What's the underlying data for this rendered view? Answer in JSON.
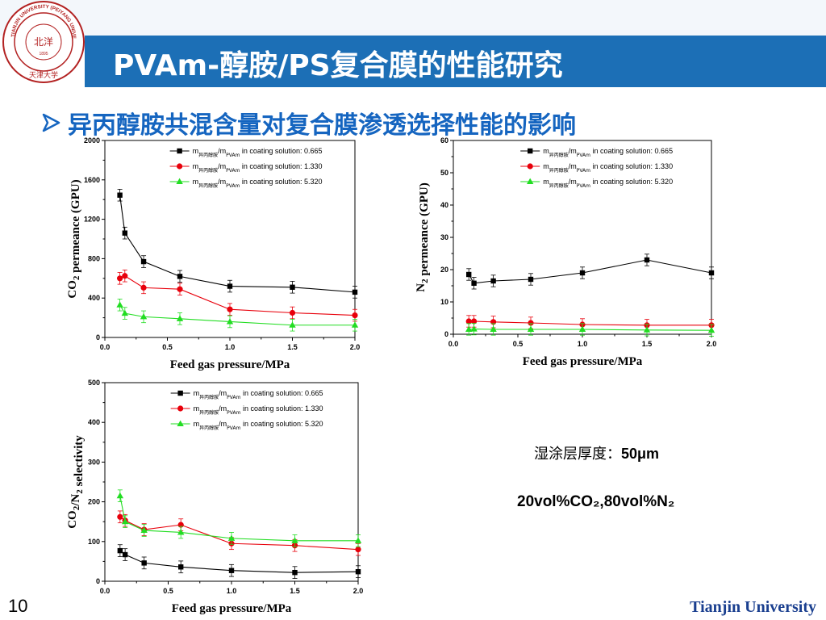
{
  "slide": {
    "title": "PVAm-醇胺/PS复合膜的性能研究",
    "subtitle": "异丙醇胺共混含量对复合膜渗透选择性能的影响",
    "page_number": "10",
    "footer": "Tianjin University",
    "logo": {
      "icon": "university-seal-icon",
      "ring_text": "TIANJIN UNIVERSITY (PEIYANG UNIVERSITY)",
      "center_text": "北洋",
      "bottom_text": "天津大学",
      "year": "1895"
    },
    "notes": {
      "thickness_label": "湿涂层厚度：",
      "thickness_value": "50μm",
      "gas_composition": "20vol%CO₂,80vol%N₂"
    },
    "colors": {
      "banner": "#1c6fb6",
      "subtitle": "#1565c0",
      "series_black": "#000000",
      "series_red": "#e8000b",
      "series_green": "#22dd22",
      "footer": "#1a3f8f"
    }
  },
  "chart_data": [
    {
      "id": "co2",
      "type": "line",
      "ylabel": "CO2 permeance (GPU)",
      "xlabel": "Feed gas pressure/MPa",
      "xlim": [
        0,
        2.0
      ],
      "ylim": [
        0,
        2000
      ],
      "xticks": [
        "0.0",
        "0.5",
        "1.0",
        "1.5",
        "2.0"
      ],
      "yticks": [
        "0",
        "400",
        "800",
        "1200",
        "1600",
        "2000"
      ],
      "legend_position": "top-right",
      "series": [
        {
          "name": "m异丙醇胺/mPVAm in coating solution: 0.665",
          "marker": "square",
          "color": "#000000",
          "x": [
            0.12,
            0.16,
            0.31,
            0.6,
            1.0,
            1.5,
            2.0
          ],
          "y": [
            1445,
            1060,
            770,
            620,
            520,
            510,
            460
          ]
        },
        {
          "name": "m异丙醇胺/mPVAm in coating solution: 1.330",
          "marker": "circle",
          "color": "#e8000b",
          "x": [
            0.12,
            0.16,
            0.31,
            0.6,
            1.0,
            1.5,
            2.0
          ],
          "y": [
            600,
            625,
            505,
            490,
            285,
            250,
            225
          ]
        },
        {
          "name": "m异丙醇胺/mPVAm in coating solution: 5.320",
          "marker": "triangle",
          "color": "#22dd22",
          "x": [
            0.12,
            0.16,
            0.31,
            0.6,
            1.0,
            1.5,
            2.0
          ],
          "y": [
            330,
            245,
            210,
            190,
            160,
            125,
            125
          ]
        }
      ]
    },
    {
      "id": "n2",
      "type": "line",
      "ylabel": "N2 permeance (GPU)",
      "xlabel": "Feed gas pressure/MPa",
      "xlim": [
        0,
        2.0
      ],
      "ylim": [
        0,
        60
      ],
      "xticks": [
        "0.0",
        "0.5",
        "1.0",
        "1.5",
        "2.0"
      ],
      "yticks": [
        "0",
        "10",
        "20",
        "30",
        "40",
        "50",
        "60"
      ],
      "legend_position": "top-right",
      "series": [
        {
          "name": "m异丙醇胺/mPVAm in coating solution: 0.665",
          "marker": "square",
          "color": "#000000",
          "x": [
            0.12,
            0.16,
            0.31,
            0.6,
            1.0,
            1.5,
            2.0
          ],
          "y": [
            18.5,
            15.8,
            16.5,
            17.0,
            19.0,
            23.0,
            19.0
          ]
        },
        {
          "name": "m异丙醇胺/mPVAm in coating solution: 1.330",
          "marker": "circle",
          "color": "#e8000b",
          "x": [
            0.12,
            0.16,
            0.31,
            0.6,
            1.0,
            1.5,
            2.0
          ],
          "y": [
            4.0,
            4.0,
            3.8,
            3.5,
            3.0,
            2.8,
            2.8
          ]
        },
        {
          "name": "m异丙醇胺/mPVAm in coating solution: 5.320",
          "marker": "triangle",
          "color": "#22dd22",
          "x": [
            0.12,
            0.16,
            0.31,
            0.6,
            1.0,
            1.5,
            2.0
          ],
          "y": [
            1.5,
            1.6,
            1.5,
            1.5,
            1.5,
            1.3,
            1.2
          ]
        }
      ]
    },
    {
      "id": "sel",
      "type": "line",
      "ylabel": "CO2/N2 selectivity",
      "xlabel": "Feed gas pressure/MPa",
      "xlim": [
        0,
        2.0
      ],
      "ylim": [
        0,
        500
      ],
      "xticks": [
        "0.0",
        "0.5",
        "1.0",
        "1.5",
        "2.0"
      ],
      "yticks": [
        "0",
        "100",
        "200",
        "300",
        "400",
        "500"
      ],
      "legend_position": "top-right",
      "series": [
        {
          "name": "m异丙醇胺/mPVAm in coating solution: 0.665",
          "marker": "square",
          "color": "#000000",
          "x": [
            0.12,
            0.16,
            0.31,
            0.6,
            1.0,
            1.5,
            2.0
          ],
          "y": [
            77,
            67,
            46,
            36,
            27,
            22,
            24
          ]
        },
        {
          "name": "m异丙醇胺/mPVAm in coating solution: 1.330",
          "marker": "circle",
          "color": "#e8000b",
          "x": [
            0.12,
            0.16,
            0.31,
            0.6,
            1.0,
            1.5,
            2.0
          ],
          "y": [
            162,
            153,
            130,
            142,
            95,
            90,
            80
          ]
        },
        {
          "name": "m异丙醇胺/mPVAm in coating solution: 5.320",
          "marker": "triangle",
          "color": "#22dd22",
          "x": [
            0.12,
            0.16,
            0.31,
            0.6,
            1.0,
            1.5,
            2.0
          ],
          "y": [
            215,
            150,
            128,
            123,
            108,
            102,
            102
          ]
        }
      ]
    }
  ]
}
